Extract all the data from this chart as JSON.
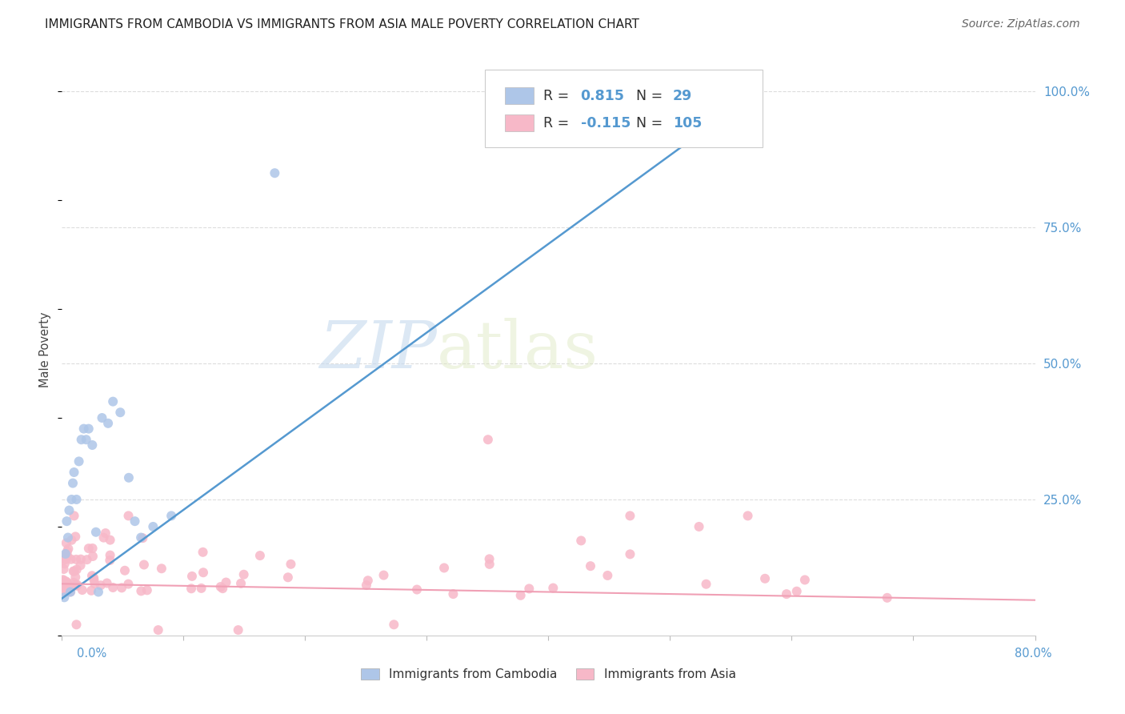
{
  "title": "IMMIGRANTS FROM CAMBODIA VS IMMIGRANTS FROM ASIA MALE POVERTY CORRELATION CHART",
  "source": "Source: ZipAtlas.com",
  "ylabel": "Male Poverty",
  "watermark_zip": "ZIP",
  "watermark_atlas": "atlas",
  "legend_entry1": {
    "label": "Immigrants from Cambodia",
    "R": "0.815",
    "N": "29",
    "color": "#aec6e8"
  },
  "legend_entry2": {
    "label": "Immigrants from Asia",
    "R": "-0.115",
    "N": "105",
    "color": "#f7b8c8"
  },
  "background_color": "#ffffff",
  "grid_color": "#dddddd",
  "line_cambodia_color": "#5599d0",
  "line_asia_color": "#f0a0b5",
  "scatter_cambodia_color": "#aec6e8",
  "scatter_asia_color": "#f7b8c8",
  "right_axis_color": "#5599d0",
  "label_color": "#5599d0",
  "text_color": "#333333",
  "xlim": [
    0.0,
    0.8
  ],
  "ylim": [
    0.0,
    1.05
  ],
  "yticks": [
    0.25,
    0.5,
    0.75,
    1.0
  ],
  "ytick_labels": [
    "25.0%",
    "50.0%",
    "75.0%",
    "100.0%"
  ],
  "xticks_minor": [
    0.0,
    0.1,
    0.2,
    0.3,
    0.4,
    0.5,
    0.6,
    0.7,
    0.8
  ]
}
